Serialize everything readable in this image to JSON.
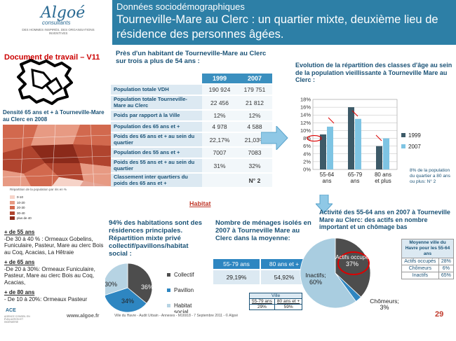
{
  "header": {
    "logo": "Algoé",
    "logo_sub": "consultants",
    "logo_tagline": "DES HOMMES INSPIRÉS, DES ORGANISATIONS INVENTIVES",
    "kicker": "Données sociodémographiques",
    "title": "Tourneville-Mare au Clerc : un quartier mixte, deuxième lieu de résidence des personnes âgées."
  },
  "left": {
    "draft": "Document de travail – V11",
    "density_title": "Densité 65 ans et + à Tourneville-Mare au Clerc en 2008",
    "legend_title": "Répartition de la population par iris en %",
    "legend": [
      {
        "label": "0-10",
        "color": "#f6d3c8"
      },
      {
        "label": "10-20",
        "color": "#e79a83"
      },
      {
        "label": "20-30",
        "color": "#d2694e"
      },
      {
        "label": "30-40",
        "color": "#b0442e"
      },
      {
        "label": "plus de 40",
        "color": "#8b2a1a"
      }
    ],
    "ages": [
      {
        "heading": "+ de 55 ans",
        "text": "-De 30 à 40 % : Ormeaux Gobelins, Funiculaire, Pasteur, Mare au clerc Bois au Coq, Acacias, La Hêtraie"
      },
      {
        "heading": "+ de 65 ans",
        "text": "-De 20 à 30%: Ormeaux Funiculaire, Pasteur, Mare au clerc Bois au Coq, Acacias,"
      },
      {
        "heading": "+ de 80 ans",
        "text": "- De 10 à 20%: Ormeaux Pasteur"
      }
    ]
  },
  "table_section": {
    "title": "Près d'un habitant de Tourneville-Mare au Clerc sur trois a plus de 54 ans :",
    "columns": [
      "1999",
      "2007"
    ],
    "rows": [
      {
        "label": "Population totale VDH",
        "v1999": "190 924",
        "v2007": "179 751"
      },
      {
        "label": "Population totale Tourneville-Mare au Clerc",
        "v1999": "22 456",
        "v2007": "21 812"
      },
      {
        "label": "Poids par rapport à la Ville",
        "v1999": "12%",
        "v2007": "12%"
      },
      {
        "label": "Population des 65 ans et +",
        "v1999": "4 978",
        "v2007": "4 588"
      },
      {
        "label": "Poids des 65 ans et + au sein du quartier",
        "v1999": "22,17%",
        "v2007": "21,03%"
      },
      {
        "label": "Population des 55 ans et +",
        "v1999": "7007",
        "v2007": "7083"
      },
      {
        "label": "Poids des 55 ans et + au sein du quartier",
        "v1999": "31%",
        "v2007": "32%"
      },
      {
        "label": "Classement inter quartiers du poids des 65 ans et +",
        "v1999": "",
        "v2007": "N° 2"
      }
    ]
  },
  "bar_section": {
    "title": "Evolution de la répartition des classes d'âge au sein de la population vieillissante à Tourneville Mare au Clerc :",
    "note": "8% de la population du quartier a 80 ans ou plus: N° 2"
  },
  "habitat": {
    "heading": "Habitat",
    "text": "94% des habitations sont des résidences principales. Répartition mixte privé collectif/pavillons/habitat social :"
  },
  "menages": {
    "text": "Nombre de ménages isolés en 2007 à Tourneville Mare au Clerc dans la moyenne:",
    "headers": [
      "55-79 ans",
      "80 ans et +"
    ],
    "values": [
      "29,19%",
      "54,92%"
    ],
    "ville_title": "Ville",
    "ville_headers": [
      "55-79 ans",
      "80 ans et +"
    ],
    "ville_values": [
      "29%",
      "59%"
    ]
  },
  "activite": {
    "title": "Activité des 55-64 ans en 2007 à Tourneville Mare au Clerc: des actifs en nombre important et un chômage bas",
    "side_title": "Moyenne ville du Havre pour les 55-64 ans",
    "side_rows": [
      {
        "label": "Actifs occupés",
        "value": "28%"
      },
      {
        "label": "Chômeurs",
        "value": "6%"
      },
      {
        "label": "Inactifs",
        "value": "65%"
      }
    ]
  },
  "chart_data": [
    {
      "type": "bar",
      "categories": [
        "55-64 ans",
        "65-79 ans",
        "80 ans et plus"
      ],
      "series": [
        {
          "name": "1999",
          "values": [
            9,
            16,
            6
          ],
          "color": "#3d5a68"
        },
        {
          "name": "2007",
          "values": [
            11,
            13,
            8
          ],
          "color": "#7ec4e3"
        }
      ],
      "yticks": [
        "0%",
        "2%",
        "4%",
        "6%",
        "8%",
        "10%",
        "12%",
        "14%",
        "16%",
        "18%"
      ],
      "ylim": [
        0,
        18
      ],
      "legend": "right"
    },
    {
      "type": "pie",
      "labels": [
        "Collectif",
        "Pavillon",
        "Habitat social"
      ],
      "values": [
        36,
        34,
        30
      ],
      "value_labels": [
        "36%",
        "34%",
        "30%"
      ],
      "colors": [
        "#4d4d4d",
        "#2e86c1",
        "#b6d3e3"
      ]
    },
    {
      "type": "pie",
      "labels": [
        "Actifs occupés",
        "Chômeurs",
        "Inactifs"
      ],
      "values": [
        37,
        3,
        60
      ],
      "value_labels": [
        "37%",
        "3%",
        "60%"
      ],
      "colors": [
        "#4d4d4d",
        "#2e86c1",
        "#a9cde0"
      ]
    }
  ],
  "footer": {
    "url": "www.algoe.fr",
    "info": "Ville du Havre - Audit Urbain - Annexes - M16918 - 7 Septembre 2011 - © Algoé",
    "page": "29",
    "ace": "ACE",
    "ace_sub": "AGENCE CONSEIL EN ÉVALUATION ET INGÉNIERIE"
  }
}
